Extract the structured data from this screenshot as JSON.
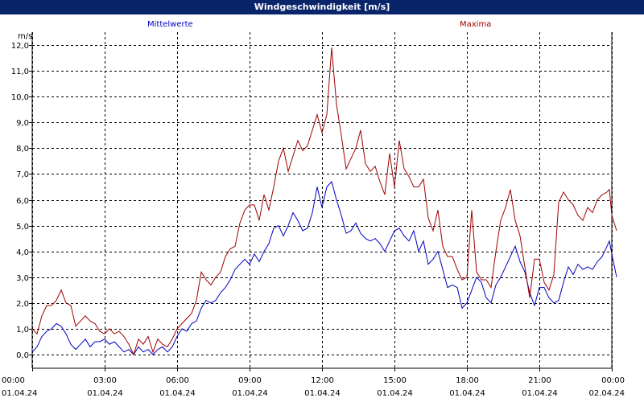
{
  "window": {
    "title": "Windgeschwindigkeit [m/s]"
  },
  "colors": {
    "titlebar": "#0a246a",
    "mean": "#0000c0",
    "max": "#a00000",
    "grid": "#000000"
  },
  "chart_data": {
    "type": "line",
    "title": "Windgeschwindigkeit [m/s]",
    "ylabel": "m/s",
    "xlabel": "",
    "ylim": [
      0,
      12
    ],
    "xlim_hours": [
      0,
      24
    ],
    "grid": true,
    "y_ticks": [
      "0,0",
      "1,0",
      "2,0",
      "3,0",
      "4,0",
      "5,0",
      "6,0",
      "7,0",
      "8,0",
      "9,0",
      "10,0",
      "11,0",
      "12,0"
    ],
    "x_ticks": [
      {
        "time": "00:00",
        "date": "01.04.24"
      },
      {
        "time": "03:00",
        "date": "01.04.24"
      },
      {
        "time": "06:00",
        "date": "01.04.24"
      },
      {
        "time": "09:00",
        "date": "01.04.24"
      },
      {
        "time": "12:00",
        "date": "01.04.24"
      },
      {
        "time": "15:00",
        "date": "01.04.24"
      },
      {
        "time": "18:00",
        "date": "01.04.24"
      },
      {
        "time": "21:00",
        "date": "01.04.24"
      },
      {
        "time": "00:00",
        "date": "02.04.24"
      }
    ],
    "legend": [
      {
        "label": "Mittelwerte",
        "placement": "top-left"
      },
      {
        "label": "Maxima",
        "placement": "top-right"
      }
    ],
    "series": [
      {
        "name": "Mittelwerte",
        "color": "#0000c0",
        "points": [
          [
            0,
            0.1
          ],
          [
            0.2,
            0.3
          ],
          [
            0.4,
            0.7
          ],
          [
            0.6,
            0.9
          ],
          [
            0.8,
            1.0
          ],
          [
            1.0,
            1.2
          ],
          [
            1.2,
            1.1
          ],
          [
            1.4,
            0.8
          ],
          [
            1.6,
            0.4
          ],
          [
            1.8,
            0.2
          ],
          [
            2.0,
            0.4
          ],
          [
            2.2,
            0.6
          ],
          [
            2.4,
            0.3
          ],
          [
            2.6,
            0.5
          ],
          [
            2.8,
            0.5
          ],
          [
            3.0,
            0.6
          ],
          [
            3.2,
            0.4
          ],
          [
            3.4,
            0.5
          ],
          [
            3.6,
            0.3
          ],
          [
            3.8,
            0.1
          ],
          [
            4.0,
            0.2
          ],
          [
            4.2,
            0.0
          ],
          [
            4.4,
            0.3
          ],
          [
            4.6,
            0.1
          ],
          [
            4.8,
            0.2
          ],
          [
            5.0,
            0.0
          ],
          [
            5.2,
            0.2
          ],
          [
            5.4,
            0.3
          ],
          [
            5.6,
            0.1
          ],
          [
            5.8,
            0.3
          ],
          [
            6.0,
            0.7
          ],
          [
            6.2,
            1.0
          ],
          [
            6.4,
            0.9
          ],
          [
            6.6,
            1.2
          ],
          [
            6.8,
            1.3
          ],
          [
            7.0,
            1.8
          ],
          [
            7.2,
            2.1
          ],
          [
            7.4,
            2.0
          ],
          [
            7.6,
            2.1
          ],
          [
            7.8,
            2.4
          ],
          [
            8.0,
            2.6
          ],
          [
            8.2,
            2.9
          ],
          [
            8.4,
            3.3
          ],
          [
            8.6,
            3.5
          ],
          [
            8.8,
            3.7
          ],
          [
            9.0,
            3.5
          ],
          [
            9.2,
            3.9
          ],
          [
            9.4,
            3.6
          ],
          [
            9.6,
            4.0
          ],
          [
            9.8,
            4.3
          ],
          [
            10.0,
            4.9
          ],
          [
            10.2,
            5.0
          ],
          [
            10.4,
            4.6
          ],
          [
            10.6,
            5.0
          ],
          [
            10.8,
            5.5
          ],
          [
            11.0,
            5.2
          ],
          [
            11.2,
            4.8
          ],
          [
            11.4,
            4.9
          ],
          [
            11.6,
            5.5
          ],
          [
            11.8,
            6.5
          ],
          [
            12.0,
            5.7
          ],
          [
            12.2,
            6.5
          ],
          [
            12.4,
            6.7
          ],
          [
            12.6,
            6.0
          ],
          [
            12.8,
            5.4
          ],
          [
            13.0,
            4.7
          ],
          [
            13.2,
            4.8
          ],
          [
            13.4,
            5.1
          ],
          [
            13.6,
            4.7
          ],
          [
            13.8,
            4.5
          ],
          [
            14.0,
            4.4
          ],
          [
            14.2,
            4.5
          ],
          [
            14.4,
            4.3
          ],
          [
            14.6,
            4.0
          ],
          [
            14.8,
            4.4
          ],
          [
            15.0,
            4.8
          ],
          [
            15.2,
            4.9
          ],
          [
            15.4,
            4.6
          ],
          [
            15.6,
            4.4
          ],
          [
            15.8,
            4.8
          ],
          [
            16.0,
            4.0
          ],
          [
            16.2,
            4.4
          ],
          [
            16.4,
            3.5
          ],
          [
            16.6,
            3.7
          ],
          [
            16.8,
            4.0
          ],
          [
            17.0,
            3.3
          ],
          [
            17.2,
            2.6
          ],
          [
            17.4,
            2.7
          ],
          [
            17.6,
            2.6
          ],
          [
            17.8,
            1.8
          ],
          [
            18.0,
            2.0
          ],
          [
            18.2,
            2.5
          ],
          [
            18.4,
            3.0
          ],
          [
            18.6,
            2.8
          ],
          [
            18.8,
            2.2
          ],
          [
            19.0,
            2.0
          ],
          [
            19.2,
            2.7
          ],
          [
            19.4,
            3.0
          ],
          [
            19.6,
            3.4
          ],
          [
            19.8,
            3.8
          ],
          [
            20.0,
            4.2
          ],
          [
            20.2,
            3.6
          ],
          [
            20.4,
            3.2
          ],
          [
            20.6,
            2.4
          ],
          [
            20.8,
            1.9
          ],
          [
            21.0,
            2.6
          ],
          [
            21.2,
            2.6
          ],
          [
            21.4,
            2.2
          ],
          [
            21.6,
            2.0
          ],
          [
            21.8,
            2.1
          ],
          [
            22.0,
            2.8
          ],
          [
            22.2,
            3.4
          ],
          [
            22.4,
            3.1
          ],
          [
            22.6,
            3.5
          ],
          [
            22.8,
            3.3
          ],
          [
            23.0,
            3.4
          ],
          [
            23.2,
            3.3
          ],
          [
            23.4,
            3.6
          ],
          [
            23.6,
            3.8
          ],
          [
            23.8,
            4.2
          ],
          [
            23.9,
            4.4
          ],
          [
            24.0,
            3.9
          ],
          [
            24.2,
            3.0
          ]
        ]
      },
      {
        "name": "Maxima",
        "color": "#a00000",
        "points": [
          [
            0,
            1.0
          ],
          [
            0.2,
            0.8
          ],
          [
            0.4,
            1.5
          ],
          [
            0.6,
            1.9
          ],
          [
            0.8,
            1.9
          ],
          [
            1.0,
            2.1
          ],
          [
            1.2,
            2.5
          ],
          [
            1.4,
            2.0
          ],
          [
            1.6,
            1.9
          ],
          [
            1.8,
            1.1
          ],
          [
            2.0,
            1.3
          ],
          [
            2.2,
            1.5
          ],
          [
            2.4,
            1.3
          ],
          [
            2.6,
            1.2
          ],
          [
            2.8,
            0.9
          ],
          [
            3.0,
            0.8
          ],
          [
            3.2,
            1.0
          ],
          [
            3.4,
            0.8
          ],
          [
            3.6,
            0.9
          ],
          [
            3.8,
            0.7
          ],
          [
            4.0,
            0.4
          ],
          [
            4.2,
            0.0
          ],
          [
            4.4,
            0.6
          ],
          [
            4.6,
            0.4
          ],
          [
            4.8,
            0.7
          ],
          [
            5.0,
            0.1
          ],
          [
            5.2,
            0.6
          ],
          [
            5.4,
            0.4
          ],
          [
            5.6,
            0.3
          ],
          [
            5.8,
            0.6
          ],
          [
            6.0,
            1.0
          ],
          [
            6.2,
            1.2
          ],
          [
            6.4,
            1.4
          ],
          [
            6.6,
            1.6
          ],
          [
            6.8,
            2.1
          ],
          [
            7.0,
            3.2
          ],
          [
            7.2,
            2.9
          ],
          [
            7.4,
            2.7
          ],
          [
            7.6,
            3.0
          ],
          [
            7.8,
            3.2
          ],
          [
            8.0,
            3.8
          ],
          [
            8.2,
            4.1
          ],
          [
            8.4,
            4.2
          ],
          [
            8.6,
            5.1
          ],
          [
            8.8,
            5.6
          ],
          [
            9.0,
            5.8
          ],
          [
            9.2,
            5.8
          ],
          [
            9.4,
            5.2
          ],
          [
            9.6,
            6.2
          ],
          [
            9.8,
            5.6
          ],
          [
            10.0,
            6.5
          ],
          [
            10.2,
            7.5
          ],
          [
            10.4,
            8.0
          ],
          [
            10.6,
            7.1
          ],
          [
            10.8,
            7.7
          ],
          [
            11.0,
            8.3
          ],
          [
            11.2,
            7.9
          ],
          [
            11.4,
            8.1
          ],
          [
            11.6,
            8.7
          ],
          [
            11.8,
            9.3
          ],
          [
            12.0,
            8.6
          ],
          [
            12.2,
            9.3
          ],
          [
            12.4,
            11.9
          ],
          [
            12.6,
            9.7
          ],
          [
            12.8,
            8.5
          ],
          [
            13.0,
            7.2
          ],
          [
            13.2,
            7.6
          ],
          [
            13.4,
            8.0
          ],
          [
            13.6,
            8.7
          ],
          [
            13.8,
            7.4
          ],
          [
            14.0,
            7.1
          ],
          [
            14.2,
            7.3
          ],
          [
            14.4,
            6.7
          ],
          [
            14.6,
            6.2
          ],
          [
            14.8,
            7.8
          ],
          [
            15.0,
            6.5
          ],
          [
            15.2,
            8.3
          ],
          [
            15.4,
            7.2
          ],
          [
            15.6,
            6.9
          ],
          [
            15.8,
            6.5
          ],
          [
            16.0,
            6.5
          ],
          [
            16.2,
            6.8
          ],
          [
            16.4,
            5.3
          ],
          [
            16.6,
            4.8
          ],
          [
            16.8,
            5.6
          ],
          [
            17.0,
            4.2
          ],
          [
            17.2,
            3.8
          ],
          [
            17.4,
            3.8
          ],
          [
            17.6,
            3.3
          ],
          [
            17.8,
            2.9
          ],
          [
            18.0,
            3.0
          ],
          [
            18.2,
            5.6
          ],
          [
            18.4,
            3.2
          ],
          [
            18.6,
            2.9
          ],
          [
            18.8,
            2.9
          ],
          [
            19.0,
            2.6
          ],
          [
            19.2,
            4.0
          ],
          [
            19.4,
            5.2
          ],
          [
            19.6,
            5.7
          ],
          [
            19.8,
            6.4
          ],
          [
            20.0,
            5.2
          ],
          [
            20.2,
            4.6
          ],
          [
            20.4,
            3.4
          ],
          [
            20.6,
            2.2
          ],
          [
            20.8,
            3.7
          ],
          [
            21.0,
            3.7
          ],
          [
            21.2,
            2.8
          ],
          [
            21.4,
            2.5
          ],
          [
            21.6,
            3.1
          ],
          [
            21.8,
            5.9
          ],
          [
            22.0,
            6.3
          ],
          [
            22.2,
            6.0
          ],
          [
            22.4,
            5.8
          ],
          [
            22.6,
            5.4
          ],
          [
            22.8,
            5.2
          ],
          [
            23.0,
            5.7
          ],
          [
            23.2,
            5.5
          ],
          [
            23.4,
            6.0
          ],
          [
            23.6,
            6.2
          ],
          [
            23.8,
            6.3
          ],
          [
            23.9,
            6.4
          ],
          [
            24.0,
            5.4
          ],
          [
            24.2,
            4.8
          ]
        ]
      }
    ]
  }
}
